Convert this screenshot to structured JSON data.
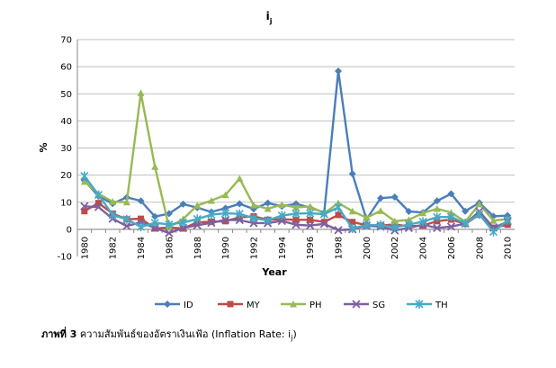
{
  "chart_data": {
    "type": "line",
    "title": "i",
    "title_subscript": "j",
    "xlabel": "Year",
    "ylabel": "%",
    "ylim": [
      -10,
      70
    ],
    "yticks": [
      -10,
      0,
      10,
      20,
      30,
      40,
      50,
      60,
      70
    ],
    "x": [
      1980,
      1981,
      1982,
      1983,
      1984,
      1985,
      1986,
      1987,
      1988,
      1989,
      1990,
      1991,
      1992,
      1993,
      1994,
      1995,
      1996,
      1997,
      1998,
      1999,
      2000,
      2001,
      2002,
      2003,
      2004,
      2005,
      2006,
      2007,
      2008,
      2009,
      2010
    ],
    "xtick_labels": [
      "1980",
      "1982",
      "1984",
      "1986",
      "1988",
      "1990",
      "1992",
      "1994",
      "1996",
      "1998",
      "2000",
      "2002",
      "2004",
      "2006",
      "2008",
      "2010"
    ],
    "grid": "horizontal",
    "legend_position": "bottom",
    "series": [
      {
        "name": "ID",
        "color": "#4a7ebb",
        "marker": "diamond",
        "values": [
          18.0,
          12.2,
          9.5,
          11.8,
          10.5,
          4.7,
          5.8,
          9.3,
          8.0,
          6.4,
          7.8,
          9.4,
          7.5,
          9.7,
          8.5,
          9.4,
          8.0,
          6.2,
          58.4,
          20.5,
          3.7,
          11.5,
          11.9,
          6.6,
          6.2,
          10.5,
          13.1,
          6.7,
          9.8,
          4.8,
          5.1
        ]
      },
      {
        "name": "MY",
        "color": "#be4b48",
        "marker": "square",
        "values": [
          6.7,
          9.7,
          5.8,
          3.7,
          3.9,
          0.3,
          0.7,
          0.3,
          2.6,
          2.8,
          3.0,
          4.4,
          4.8,
          3.5,
          3.7,
          3.5,
          3.5,
          2.7,
          5.3,
          2.7,
          1.5,
          1.4,
          1.8,
          1.1,
          1.4,
          3.0,
          3.6,
          2.0,
          5.4,
          0.6,
          1.7
        ]
      },
      {
        "name": "PH",
        "color": "#98b954",
        "marker": "triangle",
        "values": [
          17.6,
          13.1,
          10.2,
          10.0,
          50.3,
          23.1,
          0.8,
          3.8,
          8.8,
          10.6,
          12.7,
          18.7,
          8.9,
          7.6,
          9.1,
          8.1,
          8.4,
          5.9,
          9.7,
          6.7,
          4.3,
          6.8,
          3.0,
          3.5,
          6.0,
          7.6,
          6.2,
          2.8,
          9.3,
          3.2,
          3.8
        ]
      },
      {
        "name": "SG",
        "color": "#7d60a0",
        "marker": "x",
        "values": [
          8.5,
          8.2,
          3.9,
          1.2,
          2.6,
          0.5,
          -1.4,
          0.5,
          1.5,
          2.4,
          3.5,
          3.4,
          2.3,
          2.3,
          3.1,
          1.7,
          1.4,
          2.0,
          -0.3,
          0.0,
          1.3,
          1.0,
          -0.4,
          0.5,
          1.7,
          0.5,
          1.0,
          2.1,
          6.6,
          0.6,
          2.8
        ]
      },
      {
        "name": "TH",
        "color": "#46aac5",
        "marker": "asterisk",
        "values": [
          19.7,
          12.7,
          5.3,
          3.7,
          0.9,
          2.4,
          1.8,
          2.5,
          3.8,
          5.4,
          5.9,
          5.7,
          4.1,
          3.3,
          5.1,
          5.8,
          5.9,
          5.6,
          8.1,
          0.3,
          1.6,
          1.6,
          0.7,
          1.8,
          2.8,
          4.5,
          4.6,
          2.2,
          5.5,
          -0.9,
          3.3
        ]
      }
    ]
  },
  "caption": {
    "label": "ภาพที่ 3",
    "text": "ความสัมพันธ์ของอัตราเงินเฟ้อ (Inflation Rate: i",
    "sub": "j",
    "tail": ")"
  }
}
